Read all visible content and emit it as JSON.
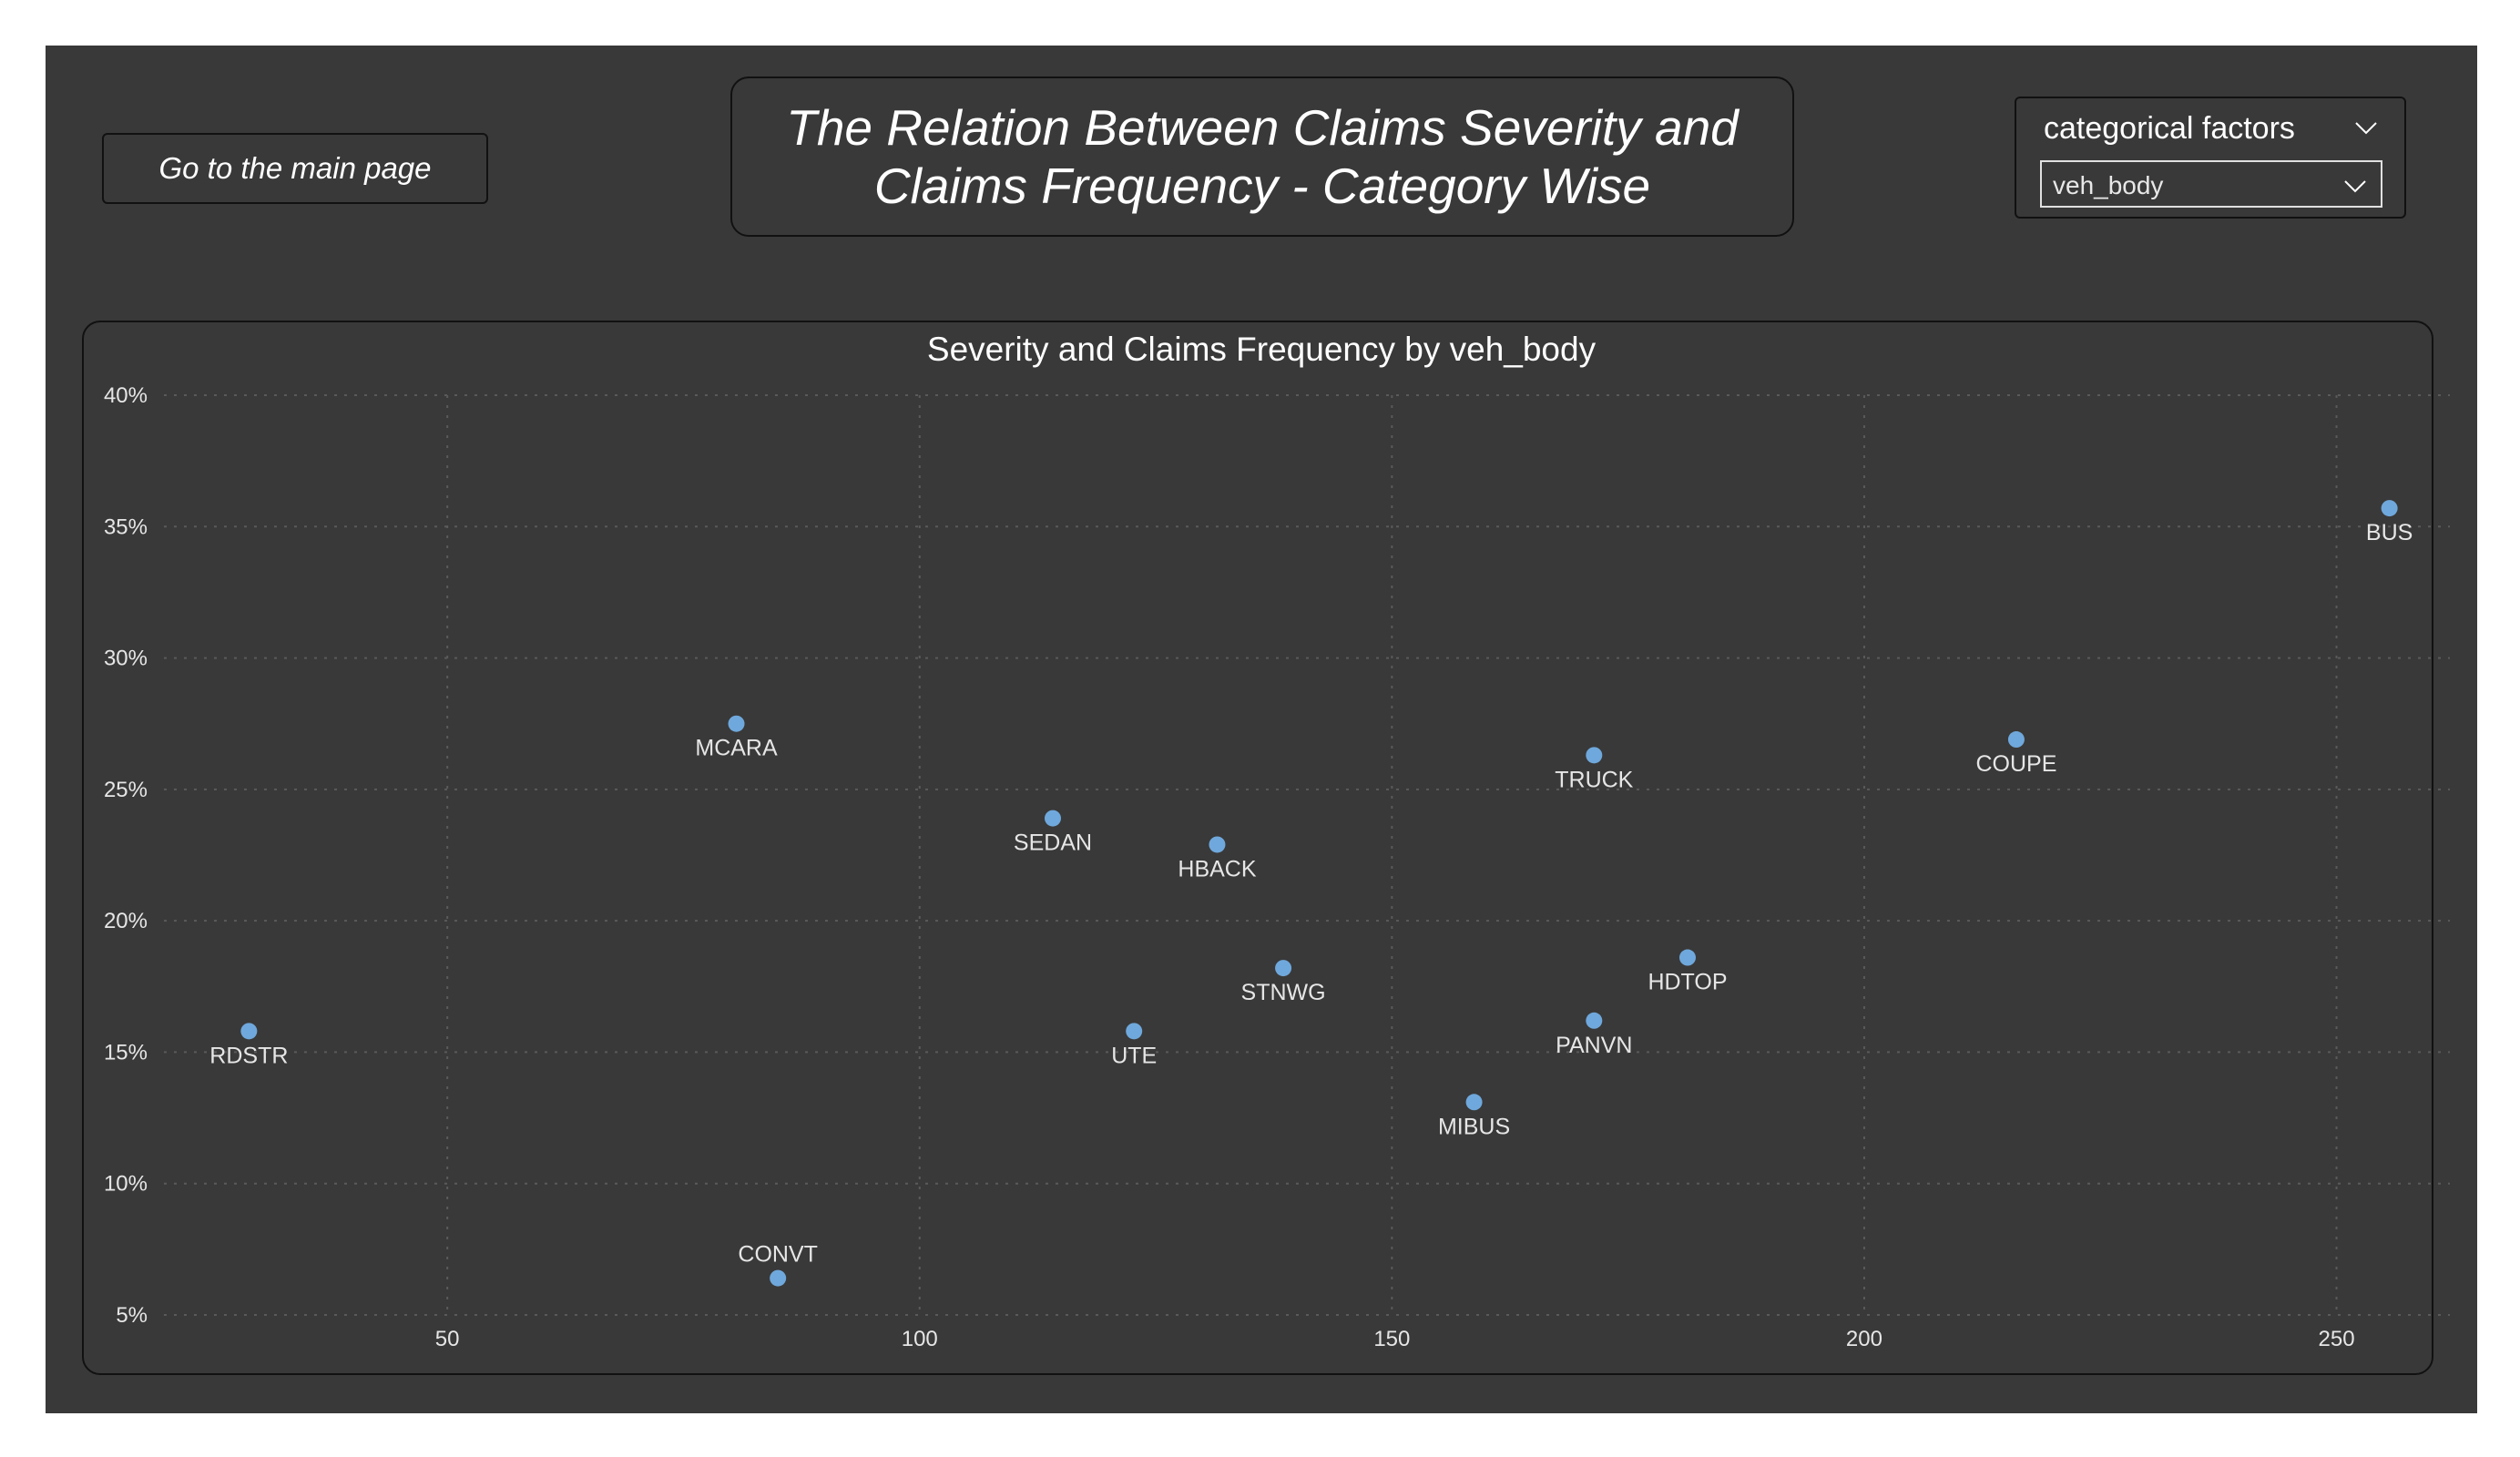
{
  "nav": {
    "main_page_label": "Go to the main page"
  },
  "header": {
    "title_line1": "The Relation Between Claims Severity and",
    "title_line2": "Claims Frequency - Category Wise"
  },
  "slicer": {
    "header": "categorical factors",
    "selected": "veh_body"
  },
  "colors": {
    "background": "#393939",
    "point": "#6fa8dc",
    "text": "#ffffff"
  },
  "chart_data": {
    "type": "scatter",
    "title": "Severity and Claims Frequency by veh_body",
    "xlabel": "",
    "ylabel": "",
    "xlim": [
      20,
      262
    ],
    "ylim": [
      5,
      40
    ],
    "x_ticks": [
      50,
      100,
      150,
      200,
      250
    ],
    "y_ticks": [
      5,
      10,
      15,
      20,
      25,
      30,
      35,
      40
    ],
    "y_format": "percent",
    "grid": true,
    "points": [
      {
        "label": "BUS",
        "x": 255.6,
        "y": 35.7,
        "label_pos": "below"
      },
      {
        "label": "COUPE",
        "x": 216.1,
        "y": 26.9,
        "label_pos": "below"
      },
      {
        "label": "TRUCK",
        "x": 171.4,
        "y": 26.3,
        "label_pos": "below"
      },
      {
        "label": "MCARA",
        "x": 80.6,
        "y": 27.5,
        "label_pos": "below"
      },
      {
        "label": "SEDAN",
        "x": 114.1,
        "y": 23.9,
        "label_pos": "below"
      },
      {
        "label": "HBACK",
        "x": 131.5,
        "y": 22.9,
        "label_pos": "below"
      },
      {
        "label": "HDTOP",
        "x": 181.3,
        "y": 18.6,
        "label_pos": "below"
      },
      {
        "label": "STNWG",
        "x": 138.5,
        "y": 18.2,
        "label_pos": "below"
      },
      {
        "label": "PANVN",
        "x": 171.4,
        "y": 16.2,
        "label_pos": "below"
      },
      {
        "label": "RDSTR",
        "x": 29.0,
        "y": 15.8,
        "label_pos": "below"
      },
      {
        "label": "UTE",
        "x": 122.7,
        "y": 15.8,
        "label_pos": "below"
      },
      {
        "label": "MIBUS",
        "x": 158.7,
        "y": 13.1,
        "label_pos": "below"
      },
      {
        "label": "CONVT",
        "x": 85.0,
        "y": 6.4,
        "label_pos": "above"
      }
    ]
  }
}
